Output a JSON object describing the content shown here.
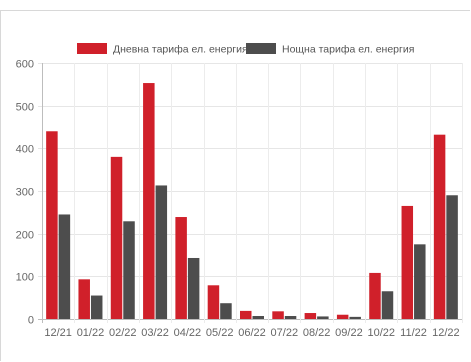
{
  "chart_data": {
    "type": "bar",
    "categories": [
      "12/21",
      "01/22",
      "02/22",
      "03/22",
      "04/22",
      "05/22",
      "06/22",
      "07/22",
      "08/22",
      "09/22",
      "10/22",
      "11/22",
      "12/22"
    ],
    "series": [
      {
        "name": "Дневна тарифа ел. енергия",
        "color": "#d0202a",
        "values": [
          440,
          93,
          380,
          553,
          239,
          79,
          19,
          18,
          14,
          10,
          108,
          265,
          432
        ]
      },
      {
        "name": "Нощна тарифа ел. енергия",
        "color": "#4d4d4d",
        "values": [
          245,
          55,
          229,
          313,
          143,
          37,
          7,
          7,
          6,
          5,
          65,
          175,
          290
        ]
      }
    ],
    "yticks": [
      0,
      100,
      200,
      300,
      400,
      500,
      600
    ],
    "ylim": [
      0,
      600
    ],
    "grid": true,
    "legend_position": "top-center",
    "title": "",
    "xlabel": "",
    "ylabel": ""
  }
}
